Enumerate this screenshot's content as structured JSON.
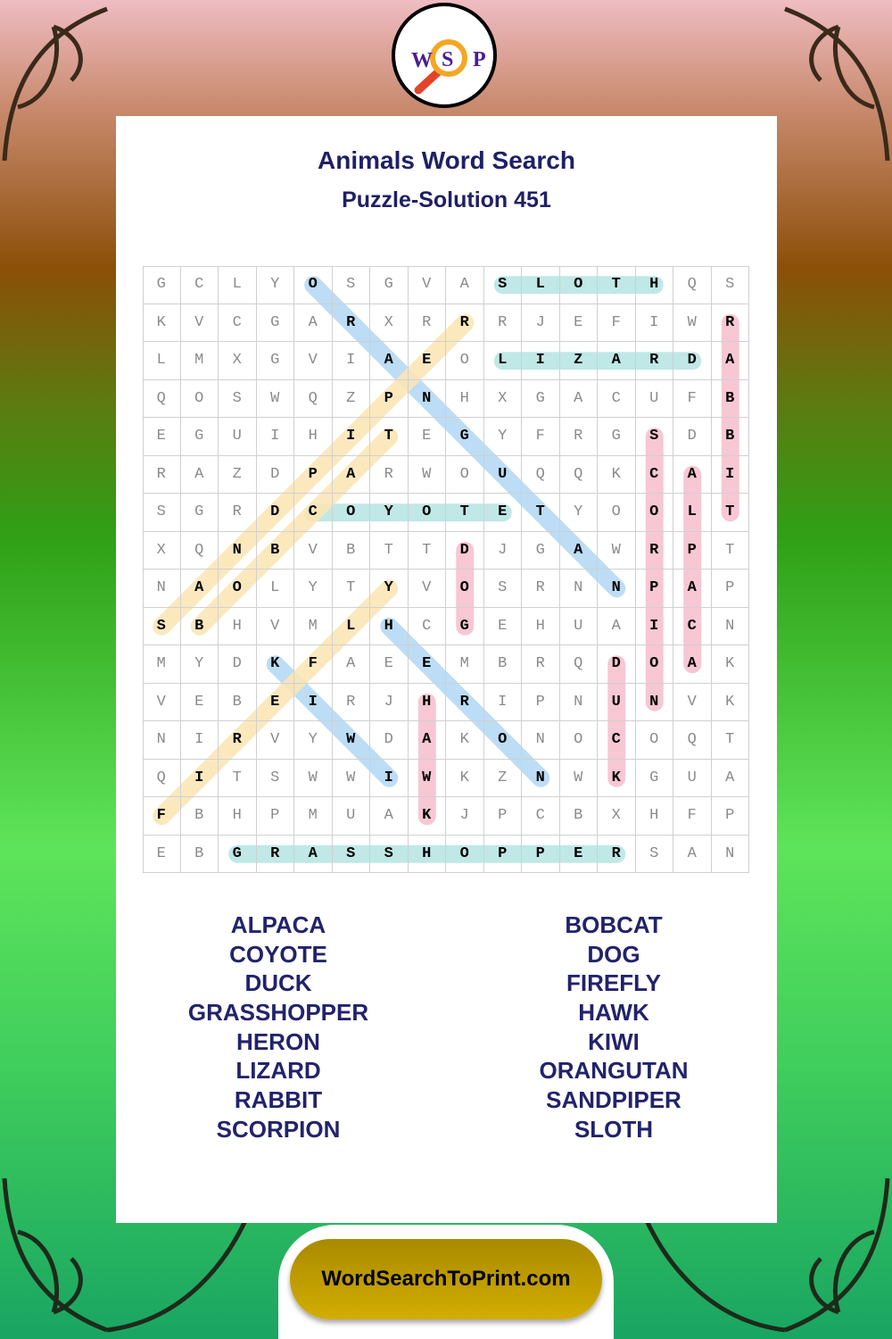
{
  "logo": {
    "letters": [
      "W",
      "S",
      "P"
    ],
    "icon": "magnifying-glass-icon"
  },
  "header": {
    "title": "Animals Word Search",
    "subtitle": "Puzzle-Solution 451"
  },
  "grid": [
    "GCLYOSGVASLOTHQS",
    "KVCGARXRRRJEFIWR",
    "LMXGVIAEOLIZARDA",
    "QOSWQZPNHXGACUFB",
    "EGUIHITEGYFRGSDB",
    "RAZDPARWOUQQKCAI",
    "SGRDCOYOTETYOOLT",
    "XQNBVBTTDJGAWRPT",
    "NAOLYTYVOSRNNPAP",
    "SBHVMLHCGEHUAICN",
    "MYDKFAEEMBRQDOAK",
    "VEBEIRJHRIPNUNVK",
    "NIRVYWDAKONOCOQT",
    "QITSWWIWKZNWKGUA",
    "FBHPMUAKJPCBXHFP",
    "EBGRASSHOPPERSAN"
  ],
  "highlight_colors": {
    "horizontal": "#b9e6e4",
    "vertical": "#f7c2d0",
    "diagonal_down": "#b5daf5",
    "diagonal_up": "#fbe6b6"
  },
  "placements": [
    {
      "word": "SLOTH",
      "row": 0,
      "col": 9,
      "dir": "horizontal"
    },
    {
      "word": "LIZARD",
      "row": 2,
      "col": 9,
      "dir": "horizontal"
    },
    {
      "word": "COYOTE",
      "row": 6,
      "col": 4,
      "dir": "horizontal"
    },
    {
      "word": "GRASSHOPPER",
      "row": 15,
      "col": 2,
      "dir": "horizontal"
    },
    {
      "word": "RABBIT",
      "row": 1,
      "col": 15,
      "dir": "vertical"
    },
    {
      "word": "SCORPION",
      "row": 4,
      "col": 13,
      "dir": "vertical"
    },
    {
      "word": "ALPACA",
      "row": 5,
      "col": 14,
      "dir": "vertical"
    },
    {
      "word": "DOG",
      "row": 7,
      "col": 8,
      "dir": "vertical"
    },
    {
      "word": "DUCK",
      "row": 10,
      "col": 12,
      "dir": "vertical"
    },
    {
      "word": "HAWK",
      "row": 11,
      "col": 7,
      "dir": "vertical"
    },
    {
      "word": "ORANGUTAN",
      "row": 0,
      "col": 4,
      "dir": "diagonal_down"
    },
    {
      "word": "HERON",
      "row": 9,
      "col": 6,
      "dir": "diagonal_down"
    },
    {
      "word": "KIWI",
      "row": 10,
      "col": 3,
      "dir": "diagonal_down"
    },
    {
      "word": "SANDPIPER",
      "row": 9,
      "col": 0,
      "dir": "diagonal_up"
    },
    {
      "word": "BOBCAT",
      "row": 9,
      "col": 1,
      "dir": "diagonal_up"
    },
    {
      "word": "FIREFLY",
      "row": 14,
      "col": 0,
      "dir": "diagonal_up"
    }
  ],
  "word_list": {
    "left": [
      "ALPACA",
      "COYOTE",
      "DUCK",
      "GRASSHOPPER",
      "HERON",
      "LIZARD",
      "RABBIT",
      "SCORPION"
    ],
    "right": [
      "BOBCAT",
      "DOG",
      "FIREFLY",
      "HAWK",
      "KIWI",
      "ORANGUTAN",
      "SANDPIPER",
      "SLOTH"
    ]
  },
  "footer": {
    "link": "WordSearchToPrint.com"
  }
}
